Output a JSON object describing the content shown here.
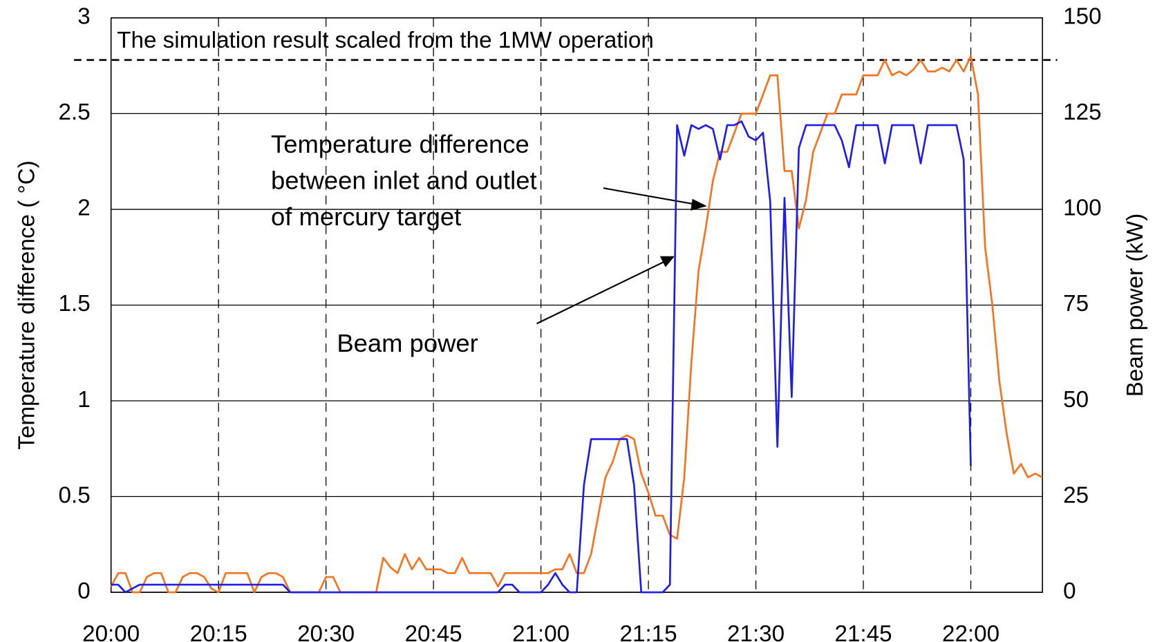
{
  "chart_data": {
    "type": "line",
    "ylabel": "Temperature difference (  °C)",
    "y2label": "Beam power (kW)",
    "xlim": [
      "20:00",
      "22:10"
    ],
    "xticks": [
      "20:00",
      "20:15",
      "20:30",
      "20:45",
      "21:00",
      "21:15",
      "21:30",
      "21:45",
      "22:00"
    ],
    "ylim": [
      0,
      3
    ],
    "yticks": [
      0,
      0.5,
      1,
      1.5,
      2,
      2.5,
      3
    ],
    "y2lim": [
      0,
      150
    ],
    "y2ticks": [
      0,
      25,
      50,
      75,
      100,
      125,
      150
    ],
    "grid": true,
    "reference_line": {
      "value": 2.78,
      "label": "The simulation result scaled from the 1MW operation",
      "color": "#3333ff"
    },
    "annotations": [
      {
        "lines": [
          "Temperature difference",
          "between inlet and outlet",
          "of mercury target"
        ],
        "color": "#f4731f"
      },
      {
        "lines": [
          "Beam power"
        ],
        "color": "#2a2ae8"
      }
    ],
    "x": [
      "20:00",
      "20:01",
      "20:02",
      "20:03",
      "20:04",
      "20:05",
      "20:06",
      "20:07",
      "20:08",
      "20:09",
      "20:10",
      "20:11",
      "20:12",
      "20:13",
      "20:14",
      "20:15",
      "20:16",
      "20:17",
      "20:18",
      "20:19",
      "20:20",
      "20:21",
      "20:22",
      "20:23",
      "20:24",
      "20:25",
      "20:26",
      "20:27",
      "20:28",
      "20:29",
      "20:30",
      "20:31",
      "20:32",
      "20:33",
      "20:34",
      "20:35",
      "20:36",
      "20:37",
      "20:38",
      "20:39",
      "20:40",
      "20:41",
      "20:42",
      "20:43",
      "20:44",
      "20:45",
      "20:46",
      "20:47",
      "20:48",
      "20:49",
      "20:50",
      "20:51",
      "20:52",
      "20:53",
      "20:54",
      "20:55",
      "20:56",
      "20:57",
      "20:58",
      "20:59",
      "21:00",
      "21:01",
      "21:02",
      "21:03",
      "21:04",
      "21:05",
      "21:06",
      "21:07",
      "21:08",
      "21:09",
      "21:10",
      "21:11",
      "21:12",
      "21:13",
      "21:14",
      "21:15",
      "21:16",
      "21:17",
      "21:18",
      "21:19",
      "21:20",
      "21:21",
      "21:22",
      "21:23",
      "21:24",
      "21:25",
      "21:26",
      "21:27",
      "21:28",
      "21:29",
      "21:30",
      "21:31",
      "21:32",
      "21:33",
      "21:34",
      "21:35",
      "21:36",
      "21:37",
      "21:38",
      "21:39",
      "21:40",
      "21:41",
      "21:42",
      "21:43",
      "21:44",
      "21:45",
      "21:46",
      "21:47",
      "21:48",
      "21:49",
      "21:50",
      "21:51",
      "21:52",
      "21:53",
      "21:54",
      "21:55",
      "21:56",
      "21:57",
      "21:58",
      "21:59",
      "22:00",
      "22:01",
      "22:02",
      "22:03",
      "22:04",
      "22:05",
      "22:06",
      "22:07",
      "22:08",
      "22:09",
      "22:10"
    ],
    "series": [
      {
        "name": "Temperature difference",
        "color": "#f4731f",
        "axis": "y",
        "values": [
          0.03,
          0.1,
          0.1,
          0,
          0,
          0.08,
          0.1,
          0.1,
          0,
          0,
          0.08,
          0.1,
          0.1,
          0.08,
          0.02,
          0,
          0.1,
          0.1,
          0.1,
          0.1,
          0,
          0.08,
          0.1,
          0.1,
          0.08,
          0,
          0,
          0,
          0,
          0,
          0.08,
          0.08,
          0,
          0,
          0,
          0,
          0,
          0,
          0.18,
          0.13,
          0.1,
          0.2,
          0.12,
          0.18,
          0.12,
          0.12,
          0.12,
          0.1,
          0.1,
          0.18,
          0.1,
          0.1,
          0.1,
          0.1,
          0.03,
          0.1,
          0.1,
          0.1,
          0.1,
          0.1,
          0.1,
          0.1,
          0.12,
          0.12,
          0.2,
          0.1,
          0.1,
          0.2,
          0.4,
          0.6,
          0.68,
          0.8,
          0.82,
          0.8,
          0.62,
          0.52,
          0.4,
          0.4,
          0.3,
          0.28,
          0.6,
          1.2,
          1.68,
          1.9,
          2.15,
          2.3,
          2.3,
          2.4,
          2.5,
          2.5,
          2.5,
          2.6,
          2.7,
          2.7,
          2.2,
          2.2,
          1.9,
          2.05,
          2.3,
          2.4,
          2.5,
          2.5,
          2.6,
          2.6,
          2.6,
          2.7,
          2.7,
          2.7,
          2.78,
          2.7,
          2.72,
          2.7,
          2.73,
          2.78,
          2.72,
          2.72,
          2.74,
          2.72,
          2.78,
          2.72,
          2.8,
          2.6,
          1.8,
          1.5,
          1.1,
          0.83,
          0.62,
          0.67,
          0.6,
          0.62,
          0.6
        ]
      },
      {
        "name": "Beam power",
        "color": "#1e1ee6",
        "axis": "y2",
        "values": [
          2,
          2,
          0,
          1,
          2,
          2,
          2,
          2,
          2,
          2,
          2,
          2,
          2,
          2,
          2,
          2,
          2,
          2,
          2,
          2,
          2,
          2,
          2,
          2,
          2,
          0,
          0,
          0,
          0,
          0,
          0,
          0,
          0,
          0,
          0,
          0,
          0,
          0,
          0,
          0,
          0,
          0,
          0,
          0,
          0,
          0,
          0,
          0,
          0,
          0,
          0,
          0,
          0,
          0,
          0,
          2,
          2,
          0,
          0,
          0,
          0,
          2,
          5,
          2,
          0,
          0,
          28,
          40,
          40,
          40,
          40,
          40,
          40,
          28,
          0,
          0,
          0,
          0,
          2,
          122,
          114,
          122,
          121,
          122,
          121,
          113,
          122,
          122,
          123,
          119,
          118,
          120,
          102,
          38,
          103,
          51,
          116,
          122,
          122,
          122,
          122,
          122,
          118,
          111,
          122,
          122,
          122,
          122,
          112,
          122,
          122,
          122,
          122,
          112,
          122,
          122,
          122,
          122,
          122,
          113,
          33,
          null,
          null,
          null,
          null,
          null,
          null,
          null,
          null,
          null,
          null
        ]
      }
    ]
  }
}
